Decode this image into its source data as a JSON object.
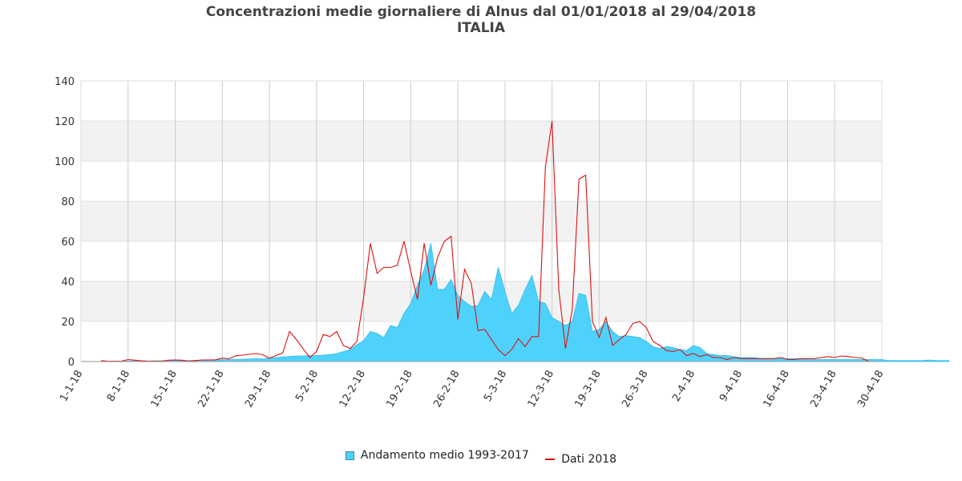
{
  "chart_data": {
    "type": "area",
    "title": "Concentrazioni medie giornaliere di Alnus dal 01/01/2018 al 29/04/2018",
    "subtitle": "ITALIA",
    "xlabel": "",
    "ylabel": "",
    "ylim": [
      0,
      140
    ],
    "yticks": [
      0,
      20,
      40,
      60,
      80,
      100,
      120,
      140
    ],
    "x_tick_labels": [
      "1-1-18",
      "8-1-18",
      "15-1-18",
      "22-1-18",
      "29-1-18",
      "5-2-18",
      "12-2-18",
      "19-2-18",
      "26-2-18",
      "5-3-18",
      "12-3-18",
      "19-3-18",
      "26-3-18",
      "2-4-18",
      "9-4-18",
      "16-4-18",
      "23-4-18",
      "30-4-18"
    ],
    "grid": true,
    "legend_position": "bottom",
    "series": [
      {
        "name": "Andamento medio 1993-2017",
        "type": "area",
        "color": "#4ed2fb",
        "values": [
          0,
          0,
          0,
          0.1,
          0.2,
          0.2,
          0.2,
          0.3,
          0.3,
          0.3,
          0.3,
          0.4,
          0.4,
          0.5,
          0.5,
          0.5,
          0.5,
          0.6,
          0.6,
          0.7,
          0.8,
          0.9,
          1.0,
          1.0,
          1.2,
          1.3,
          1.4,
          1.3,
          1.8,
          2.0,
          2.3,
          2.6,
          2.8,
          2.8,
          2.9,
          3.0,
          3.2,
          3.5,
          4.0,
          5.0,
          6.0,
          8.5,
          10.5,
          15.0,
          14.0,
          12.0,
          18.0,
          17.0,
          24.0,
          29.0,
          38.0,
          46.0,
          59.0,
          36.0,
          36.0,
          41.0,
          33.0,
          30.0,
          27.5,
          28.0,
          35.0,
          31.0,
          47.0,
          35.0,
          24.0,
          28.0,
          36.0,
          43.0,
          30.0,
          29.0,
          22.0,
          20.0,
          18.0,
          20.0,
          34.0,
          33.0,
          15.0,
          16.0,
          20.0,
          15.0,
          12.5,
          13.0,
          12.5,
          12.0,
          10.0,
          7.5,
          6.5,
          7.5,
          7.0,
          6.0,
          5.5,
          8.0,
          7.0,
          4.0,
          3.5,
          3.0,
          3.0,
          2.5,
          2.0,
          2.0,
          2.0,
          1.5,
          1.5,
          1.5,
          1.5,
          1.5,
          1.5,
          1.5,
          1.0,
          1.0,
          1.0,
          1.0,
          1.0,
          1.0,
          1.0,
          1.0,
          1.0,
          1.0,
          1.0,
          1.0,
          0.5,
          0.5,
          0.5,
          0.5,
          0.5,
          0.5,
          0.8,
          0.5,
          0.5,
          0.5
        ]
      },
      {
        "name": "Dati 2018",
        "type": "line",
        "color": "#dd1111",
        "values": [
          null,
          null,
          null,
          0.5,
          0.2,
          0.2,
          0.2,
          1.0,
          0.7,
          0.4,
          0.2,
          0.2,
          0.2,
          0.7,
          0.8,
          0.7,
          0.2,
          0.5,
          0.8,
          0.8,
          0.9,
          1.7,
          1.4,
          2.9,
          3.2,
          3.6,
          4.0,
          3.4,
          1.7,
          3.0,
          4.4,
          15.0,
          11.0,
          6.5,
          2.0,
          5.0,
          13.5,
          12.5,
          15.0,
          8.0,
          6.5,
          10.0,
          32.0,
          59.0,
          44.0,
          47.0,
          47.0,
          48.0,
          60.0,
          45.0,
          31.0,
          59.0,
          38.0,
          52.0,
          60.0,
          62.5,
          21.0,
          46.0,
          39.0,
          15.5,
          16.0,
          11.0,
          6.0,
          3.0,
          6.0,
          11.5,
          7.5,
          12.5,
          12.5,
          97.0,
          120.0,
          36.0,
          6.5,
          26.0,
          91.0,
          93.0,
          20.0,
          12.0,
          22.0,
          8.0,
          11.0,
          13.5,
          19.0,
          20.0,
          17.0,
          10.0,
          8.0,
          5.5,
          5.0,
          6.0,
          3.0,
          4.0,
          2.5,
          3.5,
          2.0,
          2.0,
          1.0,
          2.0,
          1.5,
          1.5,
          1.5,
          1.5,
          1.5,
          1.5,
          2.0,
          1.0,
          1.0,
          1.5,
          1.5,
          1.5,
          2.0,
          2.5,
          2.0,
          2.8,
          2.5,
          2.0,
          1.8,
          0.2,
          null,
          null,
          null,
          null,
          null,
          null,
          null,
          null
        ]
      }
    ]
  }
}
